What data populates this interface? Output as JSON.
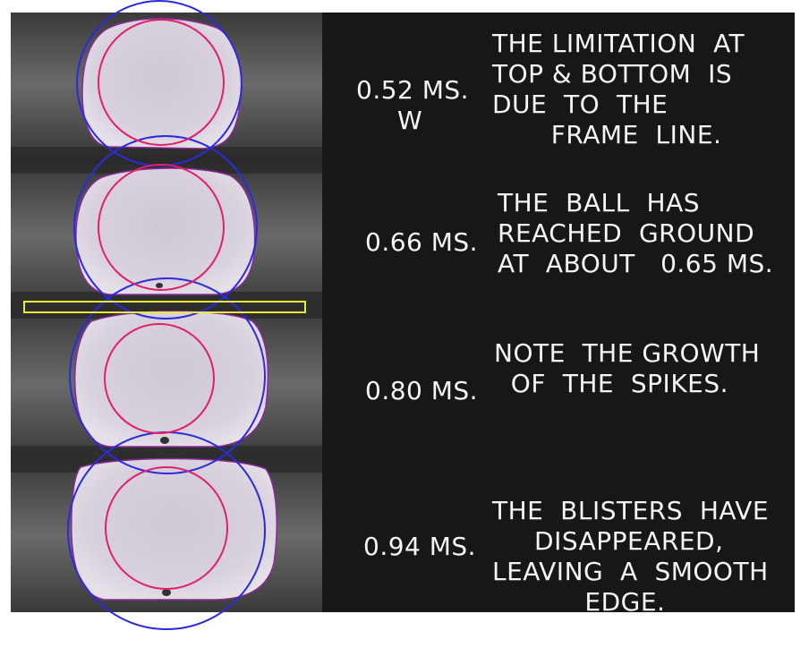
{
  "frames": [
    {
      "time": "0.52 MS.",
      "marker": "W",
      "caption": "THE LIMITATION  AT\nTOP & BOTTOM  IS\nDUE  TO  THE\n       FRAME  LINE."
    },
    {
      "time": "0.66 MS.",
      "caption": "THE  BALL  HAS\nREACHED  GROUND\nAT  ABOUT   0.65 MS."
    },
    {
      "time": "0.80 MS.",
      "caption": "NOTE  THE GROWTH\n  OF  THE  SPIKES."
    },
    {
      "time": "0.94 MS.",
      "caption": "THE  BLISTERS  HAVE\n     DISAPPEARED,\nLEAVING  A  SMOOTH\n           EDGE."
    }
  ],
  "colors": {
    "outer_circle": "#2b2bdc",
    "inner_circle": "#e0206a",
    "blob_outline": "#8a2b9c",
    "highlight_box": "#e8e83a",
    "ball_fill": "#d4cdd9"
  }
}
